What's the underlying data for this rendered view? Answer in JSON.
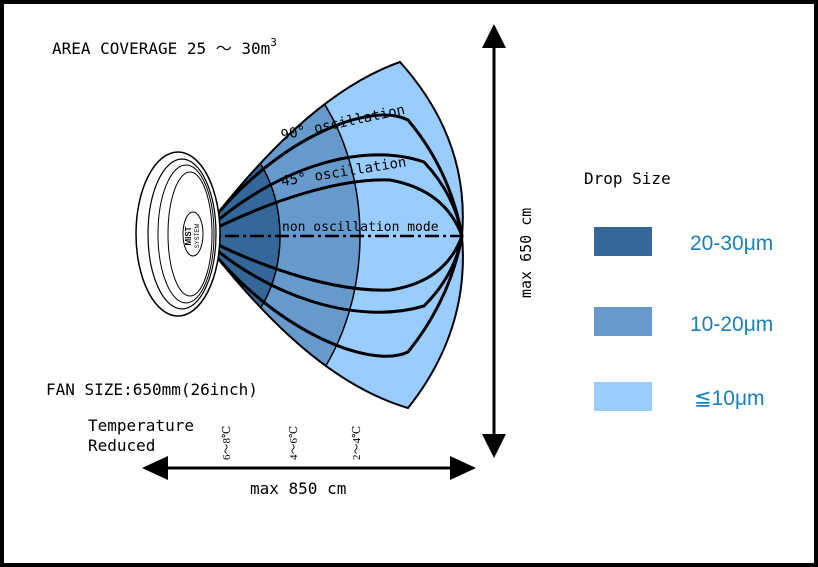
{
  "area_coverage": "AREA COVERAGE 25 ～ 30m",
  "area_coverage_sup": "3",
  "fan_size": "FAN SIZE:650mm(26inch)",
  "temperature_line1": "Temperature",
  "temperature_line2": "Reduced",
  "temps": [
    "6～8℃",
    "4～6℃",
    "2～4℃"
  ],
  "modes": {
    "deg90": "90° oscillation",
    "deg45": "45° oscillation",
    "none": "non oscillation mode"
  },
  "fan_logo_line1": "MIST",
  "fan_logo_line2": "SYSTEM",
  "max_height": "max 650 cm",
  "max_width": "max 850 cm",
  "legend": {
    "title": "Drop Size",
    "items": [
      {
        "label": "20-30μm",
        "color": "#336699"
      },
      {
        "label": "10-20μm",
        "color": "#6699cc"
      },
      {
        "label": "≦10μm",
        "color": "#99ccff"
      }
    ]
  },
  "colors": {
    "dark": "#336699",
    "mid": "#6699cc",
    "light": "#99ccff",
    "label_blue": "#1a80b8"
  }
}
